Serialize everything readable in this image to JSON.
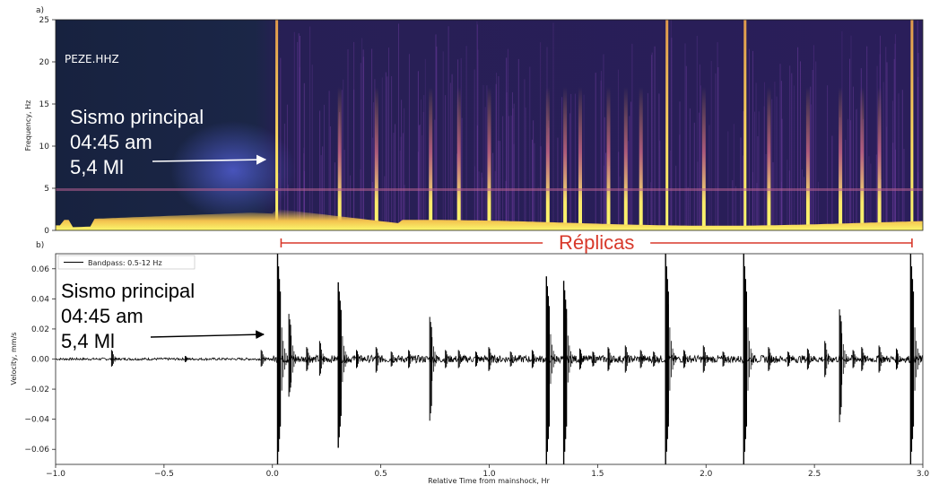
{
  "figure": {
    "panel_a_label": "a)",
    "panel_b_label": "b)"
  },
  "chart_data": [
    {
      "type": "heatmap",
      "panel": "a)",
      "title": "",
      "station_label": "PEZE.HHZ",
      "xlabel": "",
      "ylabel": "Frequency, Hz",
      "xlim": [
        -1.0,
        3.0
      ],
      "ylim": [
        0,
        25
      ],
      "y_ticks": [
        0,
        5,
        10,
        15,
        20,
        25
      ],
      "annotation": {
        "lines": [
          "Sismo principal",
          "04:45 am",
          "5,4 Ml"
        ],
        "color": "#ffffff"
      },
      "colors": [
        "#1c1d44",
        "#3b2b7a",
        "#7a3f9e",
        "#d2608a",
        "#f49b4a",
        "#fbe96b"
      ],
      "strong_events_hr": [
        0.02,
        1.82,
        2.18,
        2.95
      ],
      "medium_events_hr": [
        0.31,
        0.48,
        0.73,
        0.86,
        1.0,
        1.27,
        1.35,
        1.42,
        1.55,
        1.63,
        1.7,
        1.99,
        2.29,
        2.47,
        2.62,
        2.72,
        2.8
      ]
    },
    {
      "type": "line",
      "panel": "b)",
      "title": "",
      "xlabel": "Relative Time from mainshock, Hr",
      "ylabel": "Velocity, mm/s",
      "xlim": [
        -1.0,
        3.0
      ],
      "ylim": [
        -0.07,
        0.07
      ],
      "x_ticks": [
        "-1.0",
        "-0.5",
        "0.0",
        "0.5",
        "1.0",
        "1.5",
        "2.0",
        "2.5",
        "3.0"
      ],
      "y_ticks": [
        "-0.06",
        "-0.04",
        "-0.02",
        "0.00",
        "0.02",
        "0.04",
        "0.06"
      ],
      "legend": {
        "entry": "Bandpass: 0.5-12 Hz",
        "placement": "top-left"
      },
      "annotation": {
        "lines": [
          "Sismo principal",
          "04:45 am",
          "5,4 Ml"
        ],
        "color": "#000000"
      },
      "aftershock_bracket": {
        "label": "Réplicas",
        "start_hr": 0.04,
        "end_hr": 2.95,
        "color": "#d8392b"
      },
      "series": [
        {
          "name": "Bandpass: 0.5-12 Hz",
          "events": [
            {
              "t": -0.74,
              "pos": 0.006,
              "neg": -0.005
            },
            {
              "t": -0.4,
              "pos": 0.002,
              "neg": -0.002
            },
            {
              "t": -0.05,
              "pos": 0.006,
              "neg": -0.005
            },
            {
              "t": 0.03,
              "pos": 0.07,
              "neg": -0.07
            },
            {
              "t": 0.08,
              "pos": 0.03,
              "neg": -0.025
            },
            {
              "t": 0.16,
              "pos": 0.008,
              "neg": -0.008
            },
            {
              "t": 0.22,
              "pos": 0.012,
              "neg": -0.011
            },
            {
              "t": 0.31,
              "pos": 0.051,
              "neg": -0.059
            },
            {
              "t": 0.39,
              "pos": 0.006,
              "neg": -0.006
            },
            {
              "t": 0.48,
              "pos": 0.008,
              "neg": -0.009
            },
            {
              "t": 0.55,
              "pos": 0.005,
              "neg": -0.005
            },
            {
              "t": 0.63,
              "pos": 0.006,
              "neg": -0.006
            },
            {
              "t": 0.73,
              "pos": 0.028,
              "neg": -0.041
            },
            {
              "t": 0.8,
              "pos": 0.006,
              "neg": -0.006
            },
            {
              "t": 0.86,
              "pos": 0.006,
              "neg": -0.006
            },
            {
              "t": 0.94,
              "pos": 0.005,
              "neg": -0.005
            },
            {
              "t": 1.0,
              "pos": 0.008,
              "neg": -0.008
            },
            {
              "t": 1.1,
              "pos": 0.005,
              "neg": -0.005
            },
            {
              "t": 1.2,
              "pos": 0.006,
              "neg": -0.006
            },
            {
              "t": 1.27,
              "pos": 0.055,
              "neg": -0.07
            },
            {
              "t": 1.35,
              "pos": 0.052,
              "neg": -0.07
            },
            {
              "t": 1.42,
              "pos": 0.007,
              "neg": -0.007
            },
            {
              "t": 1.48,
              "pos": 0.005,
              "neg": -0.005
            },
            {
              "t": 1.55,
              "pos": 0.008,
              "neg": -0.008
            },
            {
              "t": 1.63,
              "pos": 0.009,
              "neg": -0.009
            },
            {
              "t": 1.7,
              "pos": 0.006,
              "neg": -0.006
            },
            {
              "t": 1.76,
              "pos": 0.005,
              "neg": -0.005
            },
            {
              "t": 1.82,
              "pos": 0.07,
              "neg": -0.07
            },
            {
              "t": 1.9,
              "pos": 0.006,
              "neg": -0.006
            },
            {
              "t": 1.99,
              "pos": 0.009,
              "neg": -0.009
            },
            {
              "t": 2.08,
              "pos": 0.005,
              "neg": -0.005
            },
            {
              "t": 2.18,
              "pos": 0.07,
              "neg": -0.07
            },
            {
              "t": 2.29,
              "pos": 0.008,
              "neg": -0.008
            },
            {
              "t": 2.38,
              "pos": 0.005,
              "neg": -0.005
            },
            {
              "t": 2.47,
              "pos": 0.007,
              "neg": -0.007
            },
            {
              "t": 2.55,
              "pos": 0.012,
              "neg": -0.012
            },
            {
              "t": 2.62,
              "pos": 0.033,
              "neg": -0.042
            },
            {
              "t": 2.68,
              "pos": 0.006,
              "neg": -0.006
            },
            {
              "t": 2.72,
              "pos": 0.008,
              "neg": -0.008
            },
            {
              "t": 2.8,
              "pos": 0.009,
              "neg": -0.009
            },
            {
              "t": 2.88,
              "pos": 0.007,
              "neg": -0.007
            },
            {
              "t": 2.95,
              "pos": 0.07,
              "neg": -0.07
            }
          ]
        }
      ]
    }
  ]
}
